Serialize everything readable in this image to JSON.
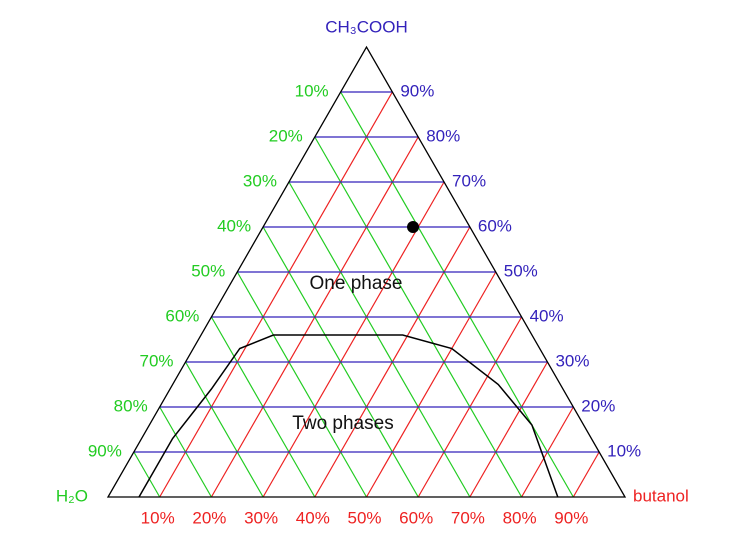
{
  "chart_data": {
    "type": "ternary",
    "corners": {
      "top": "CH₃COOH",
      "left": "H₂O",
      "right": "butanol"
    },
    "axes": {
      "acid": {
        "color": "#3322bb",
        "ticks": [
          {
            "value": 10,
            "label": "10%"
          },
          {
            "value": 20,
            "label": "20%"
          },
          {
            "value": 30,
            "label": "30%"
          },
          {
            "value": 40,
            "label": "40%"
          },
          {
            "value": 50,
            "label": "50%"
          },
          {
            "value": 60,
            "label": "60%"
          },
          {
            "value": 70,
            "label": "70%"
          },
          {
            "value": 80,
            "label": "80%"
          },
          {
            "value": 90,
            "label": "90%"
          }
        ]
      },
      "water": {
        "color": "#22cc22",
        "ticks": [
          {
            "value": 10,
            "label": "10%"
          },
          {
            "value": 20,
            "label": "20%"
          },
          {
            "value": 30,
            "label": "30%"
          },
          {
            "value": 40,
            "label": "40%"
          },
          {
            "value": 50,
            "label": "50%"
          },
          {
            "value": 60,
            "label": "60%"
          },
          {
            "value": 70,
            "label": "70%"
          },
          {
            "value": 80,
            "label": "80%"
          },
          {
            "value": 90,
            "label": "90%"
          }
        ]
      },
      "butanol": {
        "color": "#ee2222",
        "ticks": [
          {
            "value": 10,
            "label": "10%"
          },
          {
            "value": 20,
            "label": "20%"
          },
          {
            "value": 30,
            "label": "30%"
          },
          {
            "value": 40,
            "label": "40%"
          },
          {
            "value": 50,
            "label": "50%"
          },
          {
            "value": 60,
            "label": "60%"
          },
          {
            "value": 70,
            "label": "70%"
          },
          {
            "value": 80,
            "label": "80%"
          },
          {
            "value": 90,
            "label": "90%"
          }
        ]
      }
    },
    "binodal": {
      "butanol": [
        6,
        6,
        8,
        9,
        14,
        25,
        39,
        50,
        63,
        74,
        87
      ],
      "acid": [
        0,
        13,
        24,
        33,
        36,
        36,
        36,
        33,
        25,
        16,
        0
      ]
    },
    "point": {
      "acid": 60,
      "water": 11,
      "butanol": 29
    },
    "annotations": [
      "One phase",
      "Two phases"
    ]
  }
}
